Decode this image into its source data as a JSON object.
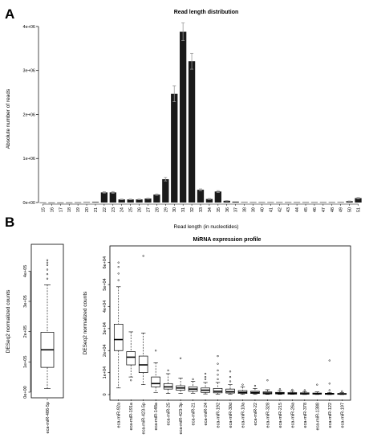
{
  "panels": {
    "a": "A",
    "b": "B"
  },
  "chart_data": [
    {
      "type": "bar",
      "title": "Read length distribution",
      "xlabel": "Read length (in nucleotides)",
      "ylabel": "Absolute number of reads",
      "ylim": [
        0,
        4200000
      ],
      "yticks": [
        0,
        1000000,
        2000000,
        3000000,
        4000000
      ],
      "yticklabels": [
        "0e+00",
        "1e+06",
        "2e+06",
        "3e+06",
        "4e+06"
      ],
      "categories": [
        "15",
        "16",
        "17",
        "18",
        "19",
        "20",
        "21",
        "22",
        "23",
        "24",
        "25",
        "26",
        "27",
        "28",
        "29",
        "30",
        "31",
        "32",
        "33",
        "34",
        "35",
        "36",
        "37",
        "38",
        "39",
        "40",
        "41",
        "42",
        "43",
        "44",
        "45",
        "46",
        "47",
        "48",
        "49",
        "50",
        "51"
      ],
      "values": [
        2000,
        2000,
        2000,
        3000,
        5000,
        10000,
        15000,
        230000,
        230000,
        70000,
        70000,
        70000,
        90000,
        180000,
        530000,
        2470000,
        3880000,
        3210000,
        290000,
        80000,
        250000,
        40000,
        20000,
        10000,
        8000,
        8000,
        8000,
        8000,
        8000,
        8000,
        8000,
        8000,
        8000,
        8000,
        10000,
        30000,
        100000
      ],
      "errors": [
        0,
        0,
        0,
        0,
        0,
        0,
        0,
        15000,
        20000,
        8000,
        8000,
        8000,
        10000,
        15000,
        40000,
        180000,
        200000,
        180000,
        20000,
        10000,
        20000,
        5000,
        0,
        0,
        0,
        0,
        0,
        0,
        0,
        0,
        0,
        0,
        0,
        0,
        0,
        5000,
        15000
      ]
    },
    {
      "type": "box",
      "ylabel": "DESeq2 normalized counts",
      "ylim": [
        0,
        470000
      ],
      "yticks": [
        0,
        100000,
        200000,
        300000,
        400000
      ],
      "yticklabels": [
        "0e+00",
        "1e+05",
        "2e+05",
        "3e+05",
        "4e+05"
      ],
      "categories": [
        "eca-miR-486-5p"
      ],
      "boxes": [
        {
          "q1": 82000,
          "median": 140000,
          "q3": 198000,
          "lower": 12000,
          "upper": 355000,
          "outliers": [
            375000,
            390000,
            405000,
            420000,
            428000,
            436000
          ]
        }
      ]
    },
    {
      "type": "box",
      "title": "MiRNA expression profile",
      "ylabel": "DESeq2 normalized counts",
      "ylim": [
        0,
        65000
      ],
      "yticks": [
        0,
        10000,
        20000,
        30000,
        40000,
        50000,
        60000
      ],
      "yticklabels": [
        "0",
        "1e+04",
        "2e+04",
        "3e+04",
        "4e+04",
        "5e+04",
        "6e+04"
      ],
      "categories": [
        "eca-miR-92a",
        "eca-miR-191a",
        "eca-miR-423-5p",
        "eca-miR-148a",
        "eca-miR-25",
        "eca-miR-423-3p",
        "eca-miR-21",
        "eca-miR-24",
        "eca-miR-192",
        "eca-miR-30d",
        "eca-miR-10a",
        "eca-miR-22",
        "eca-miR-328",
        "eca-miR-215",
        "eca-miR-26a",
        "eca-miR-378",
        "eca-miR-1388",
        "eca-miR-122",
        "eca-miR-197"
      ],
      "boxes": [
        {
          "q1": 20000,
          "median": 25000,
          "q3": 32000,
          "lower": 3000,
          "upper": 49000,
          "outliers": [
            52000,
            55000,
            58000,
            60000
          ]
        },
        {
          "q1": 13500,
          "median": 17000,
          "q3": 19500,
          "lower": 8000,
          "upper": 28500,
          "outliers": [
            6500
          ]
        },
        {
          "q1": 10000,
          "median": 13500,
          "q3": 17500,
          "lower": 4500,
          "upper": 28000,
          "outliers": [
            63000
          ]
        },
        {
          "q1": 3500,
          "median": 5000,
          "q3": 8000,
          "lower": 1000,
          "upper": 14500,
          "outliers": [
            20000
          ]
        },
        {
          "q1": 2500,
          "median": 3500,
          "q3": 5000,
          "lower": 500,
          "upper": 9500,
          "outliers": [
            11000
          ]
        },
        {
          "q1": 2000,
          "median": 3000,
          "q3": 4000,
          "lower": 500,
          "upper": 7500,
          "outliers": [
            16500
          ]
        },
        {
          "q1": 1500,
          "median": 2500,
          "q3": 3500,
          "lower": 500,
          "upper": 6000,
          "outliers": [
            7000
          ]
        },
        {
          "q1": 1000,
          "median": 2000,
          "q3": 3000,
          "lower": 300,
          "upper": 5500,
          "outliers": [
            7000,
            8000,
            9500
          ]
        },
        {
          "q1": 800,
          "median": 1500,
          "q3": 2800,
          "lower": 200,
          "upper": 5500,
          "outliers": [
            7000,
            9000,
            11000,
            14000,
            17500
          ]
        },
        {
          "q1": 700,
          "median": 1300,
          "q3": 2500,
          "lower": 200,
          "upper": 4500,
          "outliers": [
            6000,
            8000,
            10500
          ]
        },
        {
          "q1": 500,
          "median": 1000,
          "q3": 1800,
          "lower": 100,
          "upper": 3500,
          "outliers": [
            4500
          ]
        },
        {
          "q1": 500,
          "median": 900,
          "q3": 1500,
          "lower": 100,
          "upper": 2800,
          "outliers": [
            4000
          ]
        },
        {
          "q1": 300,
          "median": 700,
          "q3": 1200,
          "lower": 100,
          "upper": 2200,
          "outliers": [
            6500
          ]
        },
        {
          "q1": 300,
          "median": 600,
          "q3": 1000,
          "lower": 100,
          "upper": 1800,
          "outliers": [
            2500
          ]
        },
        {
          "q1": 200,
          "median": 500,
          "q3": 900,
          "lower": 100,
          "upper": 1500,
          "outliers": [
            2200
          ]
        },
        {
          "q1": 200,
          "median": 400,
          "q3": 800,
          "lower": 50,
          "upper": 1400,
          "outliers": [
            2000
          ]
        },
        {
          "q1": 200,
          "median": 400,
          "q3": 700,
          "lower": 50,
          "upper": 1200,
          "outliers": [
            4500
          ]
        },
        {
          "q1": 100,
          "median": 300,
          "q3": 600,
          "lower": 20,
          "upper": 1000,
          "outliers": [
            2000,
            5000,
            15500
          ]
        },
        {
          "q1": 100,
          "median": 300,
          "q3": 500,
          "lower": 20,
          "upper": 900,
          "outliers": [
            1500
          ]
        }
      ]
    }
  ]
}
